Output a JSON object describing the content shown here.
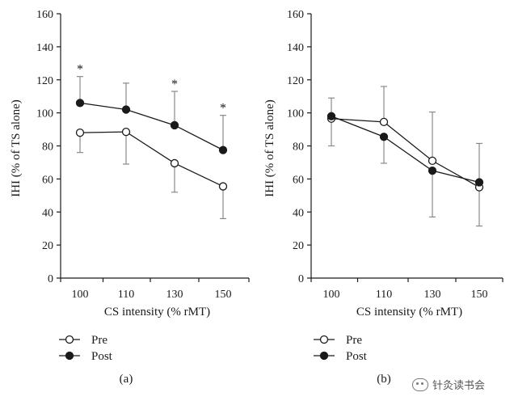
{
  "chart_data": [
    {
      "panel_label": "(a)",
      "type": "line",
      "categories": [
        "100",
        "110",
        "130",
        "150"
      ],
      "xlabel": "CS intensity (% rMT)",
      "ylabel": "IHI (% of TS alone)",
      "ylim": [
        0,
        160
      ],
      "yticks": [
        "0",
        "20",
        "40",
        "60",
        "80",
        "100",
        "120",
        "140",
        "160"
      ],
      "series": [
        {
          "name": "Pre",
          "marker": "open-circle",
          "values": [
            88,
            88.5,
            69.5,
            55.5
          ],
          "err_low": [
            76,
            69,
            52,
            36
          ],
          "err_high": null
        },
        {
          "name": "Post",
          "marker": "filled-circle",
          "values": [
            106,
            102,
            92.5,
            77.5
          ],
          "err_low": null,
          "err_high": [
            122,
            118,
            113,
            98.5
          ]
        }
      ],
      "significance": [
        "*",
        "",
        "*",
        "*"
      ]
    },
    {
      "panel_label": "(b)",
      "type": "line",
      "categories": [
        "100",
        "110",
        "130",
        "150"
      ],
      "xlabel": "CS intensity (% rMT)",
      "ylabel": "IHI (% of TS alone)",
      "ylim": [
        0,
        160
      ],
      "yticks": [
        "0",
        "20",
        "40",
        "60",
        "80",
        "100",
        "120",
        "140",
        "160"
      ],
      "series": [
        {
          "name": "Pre",
          "marker": "open-circle",
          "values": [
            96.5,
            94.5,
            71,
            55
          ],
          "err_low": null,
          "err_high": [
            109,
            116,
            100.5,
            81.5
          ]
        },
        {
          "name": "Post",
          "marker": "filled-circle",
          "values": [
            98,
            85.5,
            65,
            58
          ],
          "err_low": [
            80,
            69.5,
            37,
            31.5
          ],
          "err_high": null
        }
      ],
      "significance": [
        "",
        "",
        "",
        ""
      ]
    }
  ],
  "legend": {
    "pre_label": "Pre",
    "post_label": "Post"
  },
  "watermark": {
    "text": "针灸读书会"
  }
}
